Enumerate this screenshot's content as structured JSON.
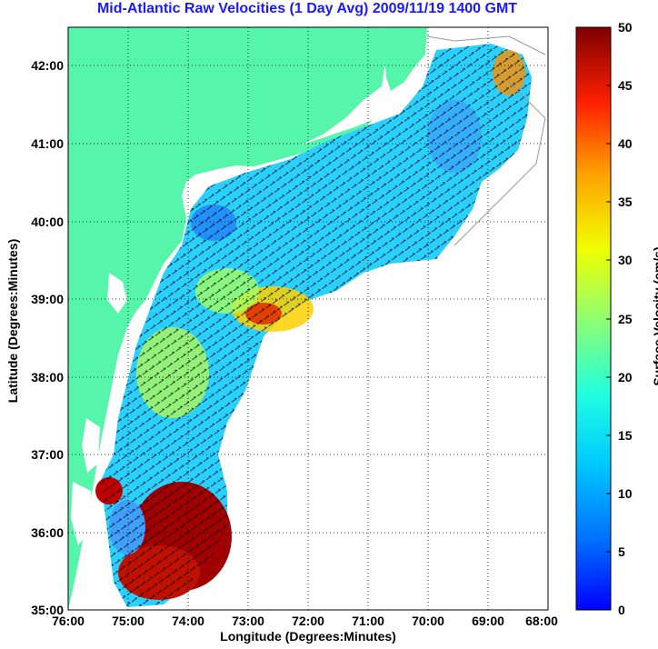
{
  "title": "Mid-Atlantic Raw Velocities (1 Day Avg) 2009/11/19 1400 GMT",
  "map": {
    "xlabel": "Longitude (Degrees:Minutes)",
    "ylabel": "Latitude (Degrees:Minutes)",
    "lon_ticks": [
      "76:00",
      "75:00",
      "74:00",
      "73:00",
      "72:00",
      "71:00",
      "70:00",
      "69:00",
      "68:00"
    ],
    "lat_ticks": [
      "42:00",
      "41:00",
      "40:00",
      "39:00",
      "38:00",
      "37:00",
      "36:00",
      "35:00"
    ],
    "land_color": "#55f5aa",
    "grid": "dotted"
  },
  "colorbar": {
    "label": "Surface Velocity (cm/s)",
    "ticks": [
      "50",
      "45",
      "40",
      "35",
      "30",
      "25",
      "20",
      "15",
      "10",
      "5",
      "0"
    ],
    "range": [
      0,
      50
    ],
    "colormap": "jet"
  }
}
